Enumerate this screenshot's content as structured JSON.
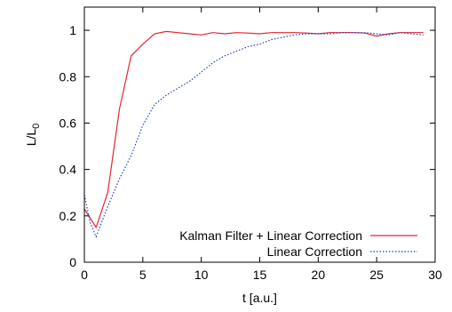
{
  "chart_data": {
    "type": "line",
    "xlabel": "t [a.u.]",
    "ylabel": {
      "main": "L/L",
      "sub": "0"
    },
    "xlim": [
      0,
      30
    ],
    "ylim": [
      0,
      1.1
    ],
    "x_ticks": [
      0,
      5,
      10,
      15,
      20,
      25,
      30
    ],
    "y_ticks": [
      0,
      0.2,
      0.4,
      0.6,
      0.8,
      1
    ],
    "y_tick_labels": [
      "0",
      "0.2",
      "0.4",
      "0.6",
      "0.8",
      "1"
    ],
    "grid": false,
    "legend_position": "bottom-right",
    "series": [
      {
        "name": "Kalman Filter + Linear Correction",
        "color": "#e0262f",
        "dash": "solid",
        "x": [
          0,
          0.5,
          1,
          2,
          3,
          4,
          5,
          6,
          7,
          8,
          9,
          10,
          11,
          12,
          13,
          14,
          15,
          16,
          17,
          18,
          19,
          20,
          21,
          22,
          23,
          24,
          25,
          26,
          27,
          28,
          29
        ],
        "y": [
          0.23,
          0.19,
          0.15,
          0.3,
          0.66,
          0.89,
          0.94,
          0.985,
          0.995,
          0.99,
          0.985,
          0.98,
          0.99,
          0.985,
          0.99,
          0.988,
          0.985,
          0.99,
          0.99,
          0.99,
          0.988,
          0.985,
          0.99,
          0.99,
          0.99,
          0.988,
          0.975,
          0.985,
          0.99,
          0.99,
          0.99
        ]
      },
      {
        "name": "Linear Correction",
        "color": "#1f3fc8",
        "dash": "dotted",
        "x": [
          0,
          0.5,
          1,
          2,
          3,
          4,
          5,
          6,
          7,
          8,
          9,
          10,
          11,
          12,
          13,
          14,
          15,
          16,
          17,
          18,
          19,
          20,
          21,
          22,
          23,
          24,
          25,
          26,
          27,
          28,
          29
        ],
        "y": [
          0.29,
          0.17,
          0.11,
          0.24,
          0.36,
          0.46,
          0.59,
          0.68,
          0.72,
          0.75,
          0.78,
          0.82,
          0.86,
          0.89,
          0.91,
          0.93,
          0.94,
          0.96,
          0.97,
          0.98,
          0.985,
          0.985,
          0.985,
          0.99,
          0.99,
          0.99,
          0.985,
          0.98,
          0.99,
          0.985,
          0.98
        ]
      }
    ]
  }
}
